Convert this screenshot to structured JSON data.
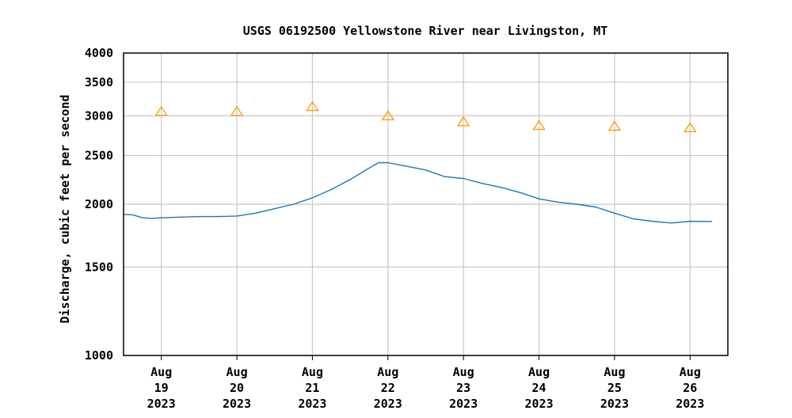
{
  "chart_data": {
    "type": "line",
    "title": "USGS 06192500 Yellowstone River near Livingston, MT",
    "ylabel": "Discharge, cubic feet per second",
    "xlabel": "",
    "y_scale": "log",
    "ylim": [
      1000,
      4000
    ],
    "y_ticks": [
      1000,
      1500,
      2000,
      2500,
      3000,
      3500,
      4000
    ],
    "y_tick_labels": [
      "1000",
      "1500",
      "2000",
      "2500",
      "3000",
      "3500",
      "4000"
    ],
    "xlim": [
      "2023-08-18T12:00",
      "2023-08-26T12:00"
    ],
    "x_ticks": [
      {
        "date": "2023-08-19",
        "line1": "Aug",
        "line2": "19",
        "line3": "2023"
      },
      {
        "date": "2023-08-20",
        "line1": "Aug",
        "line2": "20",
        "line3": "2023"
      },
      {
        "date": "2023-08-21",
        "line1": "Aug",
        "line2": "21",
        "line3": "2023"
      },
      {
        "date": "2023-08-22",
        "line1": "Aug",
        "line2": "22",
        "line3": "2023"
      },
      {
        "date": "2023-08-23",
        "line1": "Aug",
        "line2": "23",
        "line3": "2023"
      },
      {
        "date": "2023-08-24",
        "line1": "Aug",
        "line2": "24",
        "line3": "2023"
      },
      {
        "date": "2023-08-25",
        "line1": "Aug",
        "line2": "25",
        "line3": "2023"
      },
      {
        "date": "2023-08-26",
        "line1": "Aug",
        "line2": "26",
        "line3": "2023"
      }
    ],
    "grid": true,
    "series": [
      {
        "color": "#1f77b4",
        "points": [
          {
            "x": "2023-08-18T12:00",
            "y": 1910
          },
          {
            "x": "2023-08-18T15:00",
            "y": 1905
          },
          {
            "x": "2023-08-18T18:00",
            "y": 1880
          },
          {
            "x": "2023-08-18T21:00",
            "y": 1875
          },
          {
            "x": "2023-08-19T00:00",
            "y": 1880
          },
          {
            "x": "2023-08-19T06:00",
            "y": 1885
          },
          {
            "x": "2023-08-19T12:00",
            "y": 1890
          },
          {
            "x": "2023-08-19T18:00",
            "y": 1890
          },
          {
            "x": "2023-08-20T00:00",
            "y": 1895
          },
          {
            "x": "2023-08-20T06:00",
            "y": 1920
          },
          {
            "x": "2023-08-20T12:00",
            "y": 1960
          },
          {
            "x": "2023-08-20T18:00",
            "y": 2000
          },
          {
            "x": "2023-08-21T00:00",
            "y": 2060
          },
          {
            "x": "2023-08-21T06:00",
            "y": 2140
          },
          {
            "x": "2023-08-21T12:00",
            "y": 2240
          },
          {
            "x": "2023-08-21T18:00",
            "y": 2360
          },
          {
            "x": "2023-08-21T21:00",
            "y": 2420
          },
          {
            "x": "2023-08-22T00:00",
            "y": 2420
          },
          {
            "x": "2023-08-22T06:00",
            "y": 2380
          },
          {
            "x": "2023-08-22T12:00",
            "y": 2340
          },
          {
            "x": "2023-08-22T18:00",
            "y": 2270
          },
          {
            "x": "2023-08-23T00:00",
            "y": 2250
          },
          {
            "x": "2023-08-23T06:00",
            "y": 2200
          },
          {
            "x": "2023-08-23T12:00",
            "y": 2160
          },
          {
            "x": "2023-08-23T18:00",
            "y": 2110
          },
          {
            "x": "2023-08-24T00:00",
            "y": 2050
          },
          {
            "x": "2023-08-24T06:00",
            "y": 2020
          },
          {
            "x": "2023-08-24T12:00",
            "y": 2000
          },
          {
            "x": "2023-08-24T18:00",
            "y": 1975
          },
          {
            "x": "2023-08-25T00:00",
            "y": 1920
          },
          {
            "x": "2023-08-25T06:00",
            "y": 1870
          },
          {
            "x": "2023-08-25T12:00",
            "y": 1850
          },
          {
            "x": "2023-08-25T18:00",
            "y": 1835
          },
          {
            "x": "2023-08-26T00:00",
            "y": 1850
          },
          {
            "x": "2023-08-26T06:00",
            "y": 1848
          },
          {
            "x": "2023-08-26T07:00",
            "y": 1850
          }
        ]
      },
      {
        "color": "#ff9900",
        "marker": "open-triangle",
        "points": [
          {
            "x": "2023-08-19T00:00",
            "y": 3060
          },
          {
            "x": "2023-08-20T00:00",
            "y": 3060
          },
          {
            "x": "2023-08-21T00:00",
            "y": 3130
          },
          {
            "x": "2023-08-22T00:00",
            "y": 3000
          },
          {
            "x": "2023-08-23T00:00",
            "y": 2920
          },
          {
            "x": "2023-08-24T00:00",
            "y": 2870
          },
          {
            "x": "2023-08-25T00:00",
            "y": 2860
          },
          {
            "x": "2023-08-26T00:00",
            "y": 2840
          }
        ]
      }
    ]
  }
}
